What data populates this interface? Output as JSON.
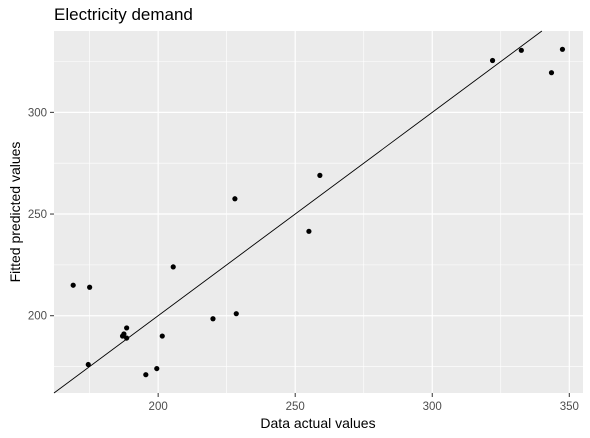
{
  "chart_data": {
    "type": "scatter",
    "title": "Electricity demand",
    "xlabel": "Data actual values",
    "ylabel": "Fitted predicted values",
    "xlim": [
      162,
      355
    ],
    "ylim": [
      162,
      340
    ],
    "x_ticks": [
      200,
      250,
      300,
      350
    ],
    "y_ticks": [
      200,
      250,
      300
    ],
    "grid": true,
    "background": "#ebebeb",
    "grid_color": "#ffffff",
    "point_color": "#000000",
    "reference_line": {
      "type": "identity",
      "slope": 1,
      "intercept": 0,
      "color": "#000000"
    },
    "points": [
      {
        "x": 169,
        "y": 215
      },
      {
        "x": 174.5,
        "y": 176
      },
      {
        "x": 175,
        "y": 214
      },
      {
        "x": 187,
        "y": 190
      },
      {
        "x": 187.5,
        "y": 191
      },
      {
        "x": 188.5,
        "y": 189
      },
      {
        "x": 188.5,
        "y": 194
      },
      {
        "x": 195.5,
        "y": 171
      },
      {
        "x": 199.5,
        "y": 174
      },
      {
        "x": 201.5,
        "y": 190
      },
      {
        "x": 205.5,
        "y": 224
      },
      {
        "x": 220,
        "y": 198.5
      },
      {
        "x": 228,
        "y": 257.5
      },
      {
        "x": 228.5,
        "y": 201
      },
      {
        "x": 255,
        "y": 241.5
      },
      {
        "x": 259,
        "y": 269
      },
      {
        "x": 322,
        "y": 325.5
      },
      {
        "x": 332.5,
        "y": 330.5
      },
      {
        "x": 343.5,
        "y": 319.5
      },
      {
        "x": 347.5,
        "y": 331
      }
    ]
  }
}
